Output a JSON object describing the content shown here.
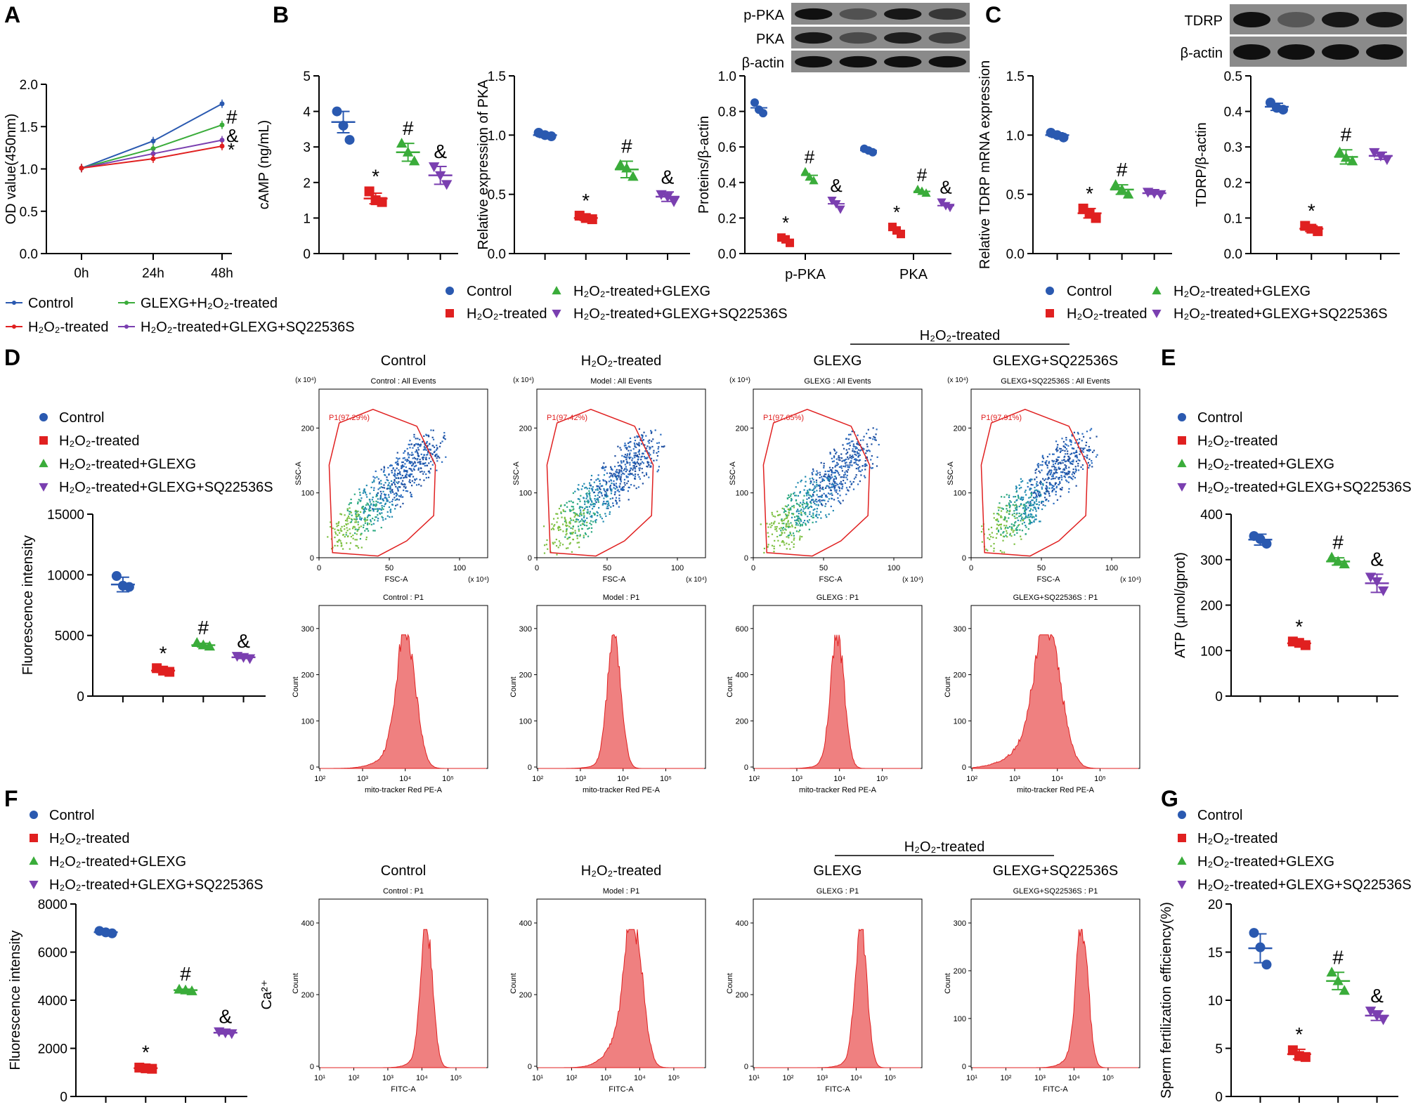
{
  "figure_title": "Multi-panel figure: effects of GLEXG and SQ22536S on H2O2-treated sperm",
  "colors": {
    "control": "#2a59b0",
    "h2o2": "#e02020",
    "glexg": "#3aac3a",
    "sq": "#7a3fb0",
    "axis": "#000000",
    "gate": "#e02020",
    "hist": "#ef8080"
  },
  "groups": {
    "legend4": [
      "Control",
      "H₂O₂-treated",
      "H₂O₂-treated+GLEXG",
      "H₂O₂-treated+GLEXG+SQ22536S"
    ],
    "legendA": [
      "Control",
      "H₂O₂-treated",
      "GLEXG+H₂O₂-treated",
      "H₂O₂-treated+GLEXG+SQ22536S"
    ],
    "flow_titles": [
      "Control",
      "H₂O₂-treated",
      "GLEXG",
      "GLEXG+SQ22536S"
    ],
    "flow_bracket": "H₂O₂-treated"
  },
  "panels": {
    "A": "A",
    "B": "B",
    "C": "C",
    "D": "D",
    "E": "E",
    "F": "F",
    "G": "G"
  },
  "blots": {
    "B": [
      "p-PKA",
      "PKA",
      "β-actin"
    ],
    "C": [
      "TDRP",
      "β-actin"
    ]
  },
  "flow": {
    "scatter_subtitles": [
      "Control : All Events",
      "Model : All Events",
      "GLEXG : All Events",
      "GLEXG+SQ22536S : All Events"
    ],
    "gate_labels": [
      "P1(97.29%)",
      "P1(97.42%)",
      "P1(97.65%)",
      "P1(97.91%)"
    ],
    "scatter_xlabel": "FSC-A",
    "scatter_ylabel": "SSC-A",
    "scatter_scale": "(x 10⁴)",
    "scatter_xticks": [
      "0",
      "50",
      "100"
    ],
    "scatter_yticks": [
      "0",
      "100",
      "200"
    ],
    "hist_subtitles_D": [
      "Control : P1",
      "Model : P1",
      "GLEXG : P1",
      "GLEXG+SQ22536S : P1"
    ],
    "hist_xlabel_D": "mito-tracker Red PE-A",
    "hist_subtitles_F": [
      "Control : P1",
      "Model : P1",
      "GLEXG : P1",
      "GLEXG+SQ22536S : P1"
    ],
    "hist_xlabel_F": "FITC-A",
    "hist_ylabel": "Count",
    "hist_xticks_D": [
      "10²",
      "10³",
      "10⁴",
      "10⁵"
    ],
    "hist_xticks_F": [
      "10¹",
      "10²",
      "10³",
      "10⁴",
      "10⁵"
    ],
    "hist_yticks_D": [
      [
        "0",
        "100",
        "200",
        "300"
      ],
      [
        "0",
        "100",
        "200",
        "300"
      ],
      [
        "0",
        "200",
        "400",
        "600"
      ],
      [
        "0",
        "100",
        "200",
        "300"
      ]
    ],
    "hist_yticks_F": [
      [
        "0",
        "200",
        "400"
      ],
      [
        "0",
        "200",
        "400"
      ],
      [
        "0",
        "200",
        "400"
      ],
      [
        "0",
        "100",
        "200",
        "300"
      ]
    ],
    "ca_label": "Ca²⁺"
  },
  "chart_data": [
    {
      "id": "A",
      "type": "line",
      "title": "",
      "xlabel": "",
      "ylabel": "OD value(450nm)",
      "categories": [
        "0h",
        "24h",
        "48h"
      ],
      "ylim": [
        0,
        2.0
      ],
      "yticks": [
        "0.0",
        "0.5",
        "1.0",
        "1.5",
        "2.0"
      ],
      "series": [
        {
          "name": "Control",
          "values": [
            1.01,
            1.33,
            1.77
          ]
        },
        {
          "name": "GLEXG+H₂O₂-treated",
          "values": [
            1.01,
            1.24,
            1.52
          ]
        },
        {
          "name": "H₂O₂-treated+GLEXG+SQ22536S",
          "values": [
            1.01,
            1.18,
            1.34
          ]
        },
        {
          "name": "H₂O₂-treated",
          "values": [
            1.01,
            1.12,
            1.27
          ]
        }
      ],
      "annotations": [
        "#",
        "&",
        "*"
      ]
    },
    {
      "id": "B1",
      "type": "scatter",
      "ylabel": "cAMP (ng/mL)",
      "ylim": [
        0,
        5
      ],
      "yticks": [
        "0",
        "1",
        "2",
        "3",
        "4",
        "5"
      ],
      "groups": [
        "Control",
        "H₂O₂-treated",
        "H₂O₂-treated+GLEXG",
        "H₂O₂-treated+GLEXG+SQ22536S"
      ],
      "points": [
        [
          4.0,
          3.6,
          3.2
        ],
        [
          1.75,
          1.5,
          1.45
        ],
        [
          3.1,
          2.85,
          2.6
        ],
        [
          2.45,
          2.2,
          1.95
        ]
      ],
      "means": [
        3.7,
        1.55,
        2.85,
        2.2
      ],
      "sd": [
        0.3,
        0.15,
        0.25,
        0.25
      ],
      "marks": [
        "",
        "*",
        "#",
        "&"
      ]
    },
    {
      "id": "B2",
      "type": "scatter",
      "ylabel": "Relative expression of PKA",
      "ylim": [
        0,
        1.5
      ],
      "yticks": [
        "0.0",
        "0.5",
        "1.0",
        "1.5"
      ],
      "groups": [
        "Control",
        "H₂O₂-treated",
        "H₂O₂-treated+GLEXG",
        "H₂O₂-treated+GLEXG+SQ22536S"
      ],
      "points": [
        [
          1.02,
          1.0,
          0.99
        ],
        [
          0.32,
          0.3,
          0.29
        ],
        [
          0.75,
          0.72,
          0.65
        ],
        [
          0.5,
          0.48,
          0.44
        ]
      ],
      "means": [
        1.0,
        0.3,
        0.71,
        0.48
      ],
      "sd": [
        0.02,
        0.02,
        0.07,
        0.04
      ],
      "marks": [
        "",
        "*",
        "#",
        "&"
      ]
    },
    {
      "id": "B3",
      "type": "scatter",
      "ylabel": "Proteins/β-actin",
      "ylim": [
        0,
        1.0
      ],
      "yticks": [
        "0.0",
        "0.2",
        "0.4",
        "0.6",
        "0.8",
        "1.0"
      ],
      "categories": [
        "p-PKA",
        "PKA"
      ],
      "groups": [
        "Control",
        "H₂O₂-treated",
        "H₂O₂-treated+GLEXG",
        "H₂O₂-treated+GLEXG+SQ22536S"
      ],
      "points_by_category": [
        [
          [
            0.85,
            0.81,
            0.79
          ],
          [
            0.09,
            0.08,
            0.06
          ],
          [
            0.46,
            0.43,
            0.41
          ],
          [
            0.3,
            0.28,
            0.25
          ]
        ],
        [
          [
            0.59,
            0.58,
            0.57
          ],
          [
            0.15,
            0.13,
            0.11
          ],
          [
            0.36,
            0.35,
            0.34
          ],
          [
            0.29,
            0.27,
            0.26
          ]
        ]
      ],
      "means_by_category": [
        [
          0.82,
          0.08,
          0.44,
          0.28
        ],
        [
          0.58,
          0.13,
          0.35,
          0.27
        ]
      ],
      "marks": [
        "",
        "*",
        "#",
        "&"
      ]
    },
    {
      "id": "C1",
      "type": "scatter",
      "ylabel": "Relative TDRP mRNA expression",
      "ylim": [
        0,
        1.5
      ],
      "yticks": [
        "0.0",
        "0.5",
        "1.0",
        "1.5"
      ],
      "groups": [
        "Control",
        "H₂O₂-treated",
        "H₂O₂-treated+GLEXG",
        "H₂O₂-treated+GLEXG+SQ22536S"
      ],
      "points": [
        [
          1.02,
          1.0,
          0.98
        ],
        [
          0.38,
          0.34,
          0.3
        ],
        [
          0.58,
          0.54,
          0.5
        ],
        [
          0.52,
          0.51,
          0.5
        ]
      ],
      "means": [
        1.0,
        0.34,
        0.54,
        0.51
      ],
      "sd": [
        0.02,
        0.04,
        0.04,
        0.01
      ],
      "marks": [
        "",
        "*",
        "#",
        ""
      ]
    },
    {
      "id": "C2",
      "type": "scatter",
      "ylabel": "TDRP/β-actin",
      "ylim": [
        0,
        0.5
      ],
      "yticks": [
        "0.0",
        "0.1",
        "0.2",
        "0.3",
        "0.4",
        "0.5"
      ],
      "groups": [
        "Control",
        "H₂O₂-treated",
        "H₂O₂-treated+GLEXG",
        "H₂O₂-treated+GLEXG+SQ22536S"
      ],
      "points": [
        [
          0.425,
          0.41,
          0.405
        ],
        [
          0.078,
          0.07,
          0.063
        ],
        [
          0.285,
          0.27,
          0.26
        ],
        [
          0.285,
          0.275,
          0.265
        ]
      ],
      "means": [
        0.413,
        0.07,
        0.272,
        0.275
      ],
      "sd": [
        0.01,
        0.008,
        0.02,
        0.01
      ],
      "marks": [
        "",
        "*",
        "#",
        ""
      ]
    },
    {
      "id": "D",
      "type": "scatter",
      "ylabel": "Fluorescence intensity",
      "ylim": [
        0,
        15000
      ],
      "yticks": [
        "0",
        "5000",
        "10000",
        "15000"
      ],
      "groups": [
        "Control",
        "H₂O₂-treated",
        "H₂O₂-treated+GLEXG",
        "H₂O₂-treated+GLEXG+SQ22536S"
      ],
      "points": [
        [
          9900,
          9100,
          9000
        ],
        [
          2300,
          2100,
          2000
        ],
        [
          4400,
          4200,
          4100
        ],
        [
          3300,
          3200,
          3100
        ]
      ],
      "means": [
        9200,
        2100,
        4200,
        3200
      ],
      "sd": [
        600,
        150,
        150,
        100
      ],
      "marks": [
        "",
        "*",
        "#",
        "&"
      ]
    },
    {
      "id": "E",
      "type": "scatter",
      "ylabel": "ATP (μmol/gprot)",
      "ylim": [
        0,
        400
      ],
      "yticks": [
        "0",
        "100",
        "200",
        "300",
        "400"
      ],
      "groups": [
        "Control",
        "H₂O₂-treated",
        "H₂O₂-treated+GLEXG",
        "H₂O₂-treated+GLEXG+SQ22536S"
      ],
      "points": [
        [
          352,
          345,
          335
        ],
        [
          120,
          117,
          112
        ],
        [
          305,
          296,
          290
        ],
        [
          262,
          252,
          232
        ]
      ],
      "means": [
        344,
        116,
        296,
        248
      ],
      "sd": [
        12,
        4,
        8,
        20
      ],
      "marks": [
        "",
        "*",
        "#",
        "&"
      ]
    },
    {
      "id": "F",
      "type": "scatter",
      "ylabel": "Fluorescence intensity",
      "ylim": [
        0,
        8000
      ],
      "yticks": [
        "0",
        "2000",
        "4000",
        "6000",
        "8000"
      ],
      "groups": [
        "Control",
        "H₂O₂-treated",
        "H₂O₂-treated+GLEXG",
        "H₂O₂-treated+GLEXG+SQ22536S"
      ],
      "points": [
        [
          6880,
          6820,
          6780
        ],
        [
          1200,
          1170,
          1150
        ],
        [
          4450,
          4420,
          4380
        ],
        [
          2700,
          2650,
          2620
        ]
      ],
      "means": [
        6830,
        1175,
        4420,
        2650
      ],
      "sd": [
        40,
        30,
        40,
        50
      ],
      "marks": [
        "",
        "*",
        "#",
        "&"
      ]
    },
    {
      "id": "G",
      "type": "scatter",
      "ylabel": "Sperm fertilization efficiency(%)",
      "ylim": [
        0,
        20
      ],
      "yticks": [
        "0",
        "5",
        "10",
        "15",
        "20"
      ],
      "groups": [
        "Control",
        "H₂O₂-treated",
        "H₂O₂-treated+GLEXG",
        "H₂O₂-treated+GLEXG+SQ22536S"
      ],
      "points": [
        [
          17.0,
          15.5,
          13.7
        ],
        [
          4.8,
          4.2,
          4.1
        ],
        [
          12.9,
          12.0,
          11.0
        ],
        [
          8.9,
          8.4,
          8.0
        ]
      ],
      "means": [
        15.4,
        4.4,
        12.0,
        8.4
      ],
      "sd": [
        1.5,
        0.5,
        0.9,
        0.5
      ],
      "marks": [
        "",
        "*",
        "#",
        "&"
      ]
    }
  ]
}
